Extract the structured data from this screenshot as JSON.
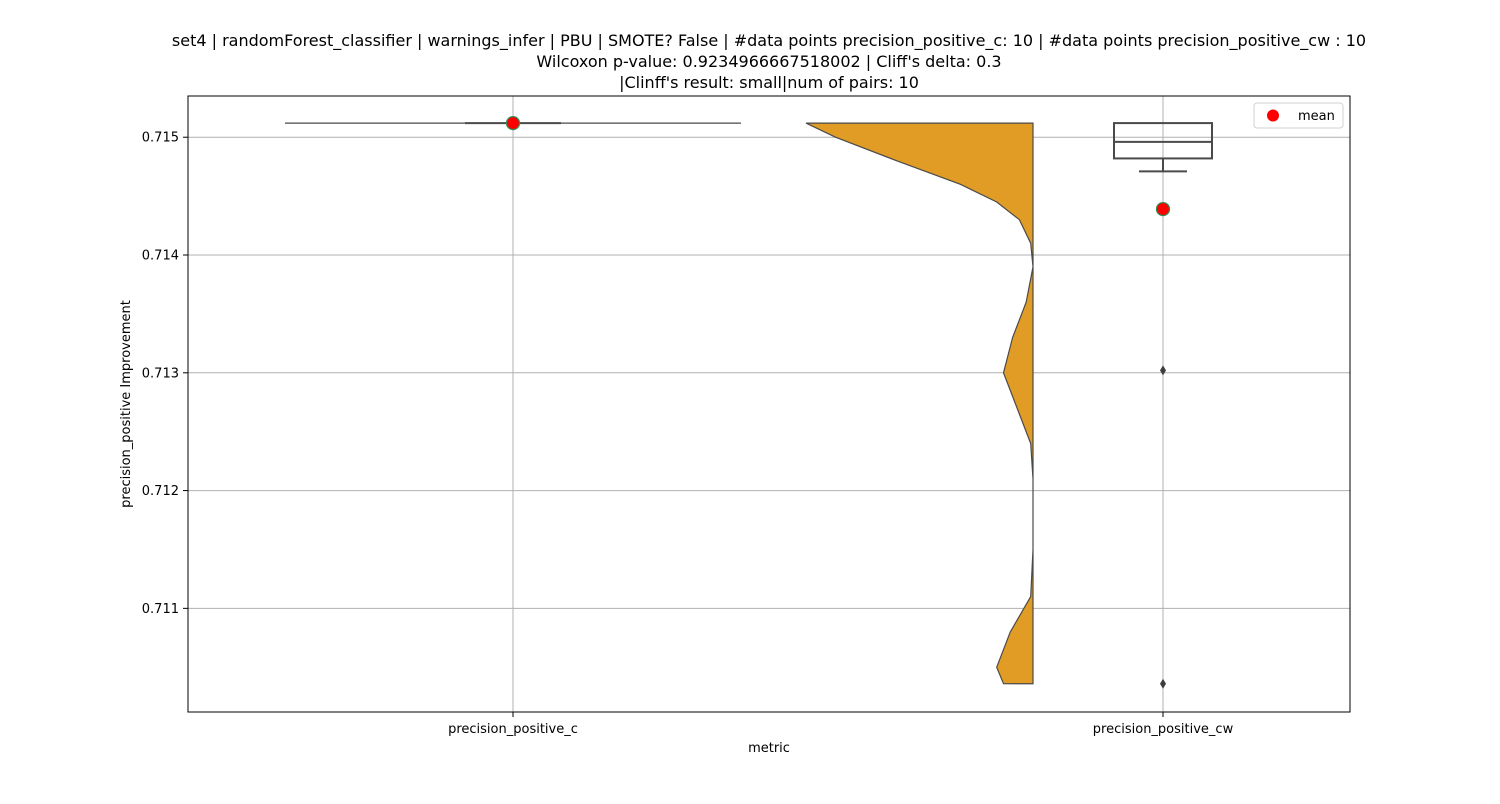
{
  "chart_data": {
    "type": "violin+box",
    "title_lines": [
      "set4 | randomForest_classifier | warnings_infer | PBU | SMOTE? False | #data points precision_positive_c: 10 | #data points precision_positive_cw : 10",
      "Wilcoxon p-value: 0.9234966667518002 | Cliff's delta: 0.3",
      "|Clinff's result: small|num of pairs: 10"
    ],
    "xlabel": "metric",
    "ylabel": "precision_positive Improvement",
    "ylim": [
      0.71012,
      0.71535
    ],
    "yticks": [
      0.711,
      0.712,
      0.713,
      0.714,
      0.715
    ],
    "ytick_labels": [
      "0.711",
      "0.712",
      "0.713",
      "0.714",
      "0.715"
    ],
    "grid": true,
    "categories": [
      "precision_positive_c",
      "precision_positive_cw"
    ],
    "legend": {
      "placement": "top-right",
      "entries": [
        {
          "label": "mean",
          "color": "#ff0000"
        }
      ]
    },
    "colors": {
      "violin_fill": "#e09c24",
      "violin_edge": "#4a4a4a",
      "box_edge": "#4a4a4a",
      "mean_marker": "#ff0000",
      "mean_edge": "#2e8b57",
      "grid": "#b0b0b0"
    },
    "series": [
      {
        "category": "precision_positive_c",
        "violin": {
          "min": 0.71512,
          "max": 0.71512,
          "profile": []
        },
        "box": {
          "q1": 0.71512,
          "median": 0.71512,
          "q3": 0.71512,
          "whisker_low": 0.71512,
          "whisker_high": 0.71512,
          "outliers": []
        },
        "mean": 0.71512
      },
      {
        "category": "precision_positive_cw",
        "violin": {
          "min": 0.71036,
          "max": 0.71512,
          "profile": [
            [
              0.71036,
              0.13
            ],
            [
              0.7105,
              0.16
            ],
            [
              0.7108,
              0.1
            ],
            [
              0.7111,
              0.01
            ],
            [
              0.7115,
              0.0
            ],
            [
              0.7121,
              0.0
            ],
            [
              0.7124,
              0.01
            ],
            [
              0.7127,
              0.07
            ],
            [
              0.713,
              0.13
            ],
            [
              0.7133,
              0.09
            ],
            [
              0.7136,
              0.03
            ],
            [
              0.7139,
              0.0
            ],
            [
              0.7141,
              0.01
            ],
            [
              0.7143,
              0.06
            ],
            [
              0.71445,
              0.16
            ],
            [
              0.7146,
              0.32
            ],
            [
              0.7148,
              0.6
            ],
            [
              0.715,
              0.87
            ],
            [
              0.71512,
              1.0
            ]
          ]
        },
        "box": {
          "q1": 0.71482,
          "median": 0.71496,
          "q3": 0.71512,
          "whisker_low": 0.71471,
          "whisker_high": 0.71512,
          "outliers": [
            0.71302,
            0.71036
          ]
        },
        "mean": 0.71439
      }
    ]
  }
}
